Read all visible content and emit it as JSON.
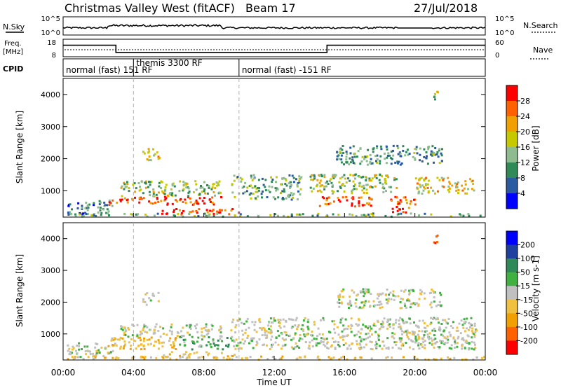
{
  "header": {
    "station": "Christmas Valley West (fitACF)",
    "beam": "Beam 17",
    "date": "27/Jul/2018"
  },
  "top_panels": {
    "nsky_label": "N.Sky",
    "nsky_ticks": [
      "10^5",
      "10^0"
    ],
    "nsearch_label": "N.Search",
    "nsearch_ticks": [
      "10^5",
      "10^0"
    ],
    "freq_label": "Freq.",
    "freq_unit": "[MHz]",
    "freq_ticks": [
      "18",
      "8"
    ],
    "nave_label": "Nave",
    "nave_ticks": [
      "60",
      "0"
    ],
    "cpid_label": "CPID",
    "cpid_segments": [
      {
        "label": "normal (fast) 151 RF",
        "start_h": 0,
        "end_h": 4
      },
      {
        "label": "themis 3300 RF",
        "start_h": 4,
        "end_h": 10
      },
      {
        "label": "normal (fast) -151 RF",
        "start_h": 10,
        "end_h": 24
      }
    ],
    "freq_steps": [
      {
        "start_h": 0,
        "end_h": 3,
        "value": 15
      },
      {
        "start_h": 3,
        "end_h": 15,
        "value": 10.3
      },
      {
        "start_h": 15,
        "end_h": 24,
        "value": 15
      }
    ]
  },
  "power_panel": {
    "ylabel": "Slant Range [km]",
    "yticks": [
      "1000",
      "2000",
      "3000",
      "4000"
    ],
    "colorbar_label": "Power [dB]",
    "colorbar_ticks": [
      "28",
      "24",
      "20",
      "16",
      "12",
      "8",
      "4"
    ]
  },
  "velocity_panel": {
    "ylabel": "Slant Range [km]",
    "yticks": [
      "1000",
      "2000",
      "3000",
      "4000"
    ],
    "colorbar_label": "Velocity [m s-1]",
    "colorbar_ticks": [
      "200",
      "100",
      "50",
      "15",
      "-15",
      "-50",
      "-100",
      "-200"
    ]
  },
  "x_axis": {
    "label": "Time UT",
    "ticks": [
      "00:00",
      "04:00",
      "08:00",
      "12:00",
      "16:00",
      "20:00",
      "00:00"
    ]
  },
  "colors": {
    "power_scale": [
      "#0000ff",
      "#2a5aa0",
      "#2e8b57",
      "#8fbc8f",
      "#c8c800",
      "#f0a000",
      "#ff6000",
      "#ff0000"
    ],
    "velocity_scale": [
      "#ff0000",
      "#ff6000",
      "#f0a000",
      "#f0c040",
      "#c0c0c0",
      "#40b040",
      "#2e8b57",
      "#2040a0",
      "#0000ff"
    ]
  },
  "chart_data": [
    {
      "type": "heatmap",
      "title": "Power",
      "xlabel": "Time UT",
      "ylabel": "Slant Range [km]",
      "xlim": [
        0,
        24
      ],
      "ylim": [
        180,
        4500
      ],
      "colorbar_label": "Power [dB]",
      "clim": [
        0,
        30
      ],
      "regions": [
        {
          "t0": 0.2,
          "t1": 2.8,
          "r0": 250,
          "r1": 700,
          "value": 8
        },
        {
          "t0": 2.5,
          "t1": 9.0,
          "r0": 550,
          "r1": 800,
          "value": 26
        },
        {
          "t0": 3.2,
          "t1": 9.0,
          "r0": 800,
          "r1": 1300,
          "value": 14
        },
        {
          "t0": 5.5,
          "t1": 10.0,
          "r0": 250,
          "r1": 420,
          "value": 27
        },
        {
          "t0": 4.5,
          "t1": 5.5,
          "r0": 1900,
          "r1": 2300,
          "value": 18
        },
        {
          "t0": 9.5,
          "t1": 13.5,
          "r0": 700,
          "r1": 1500,
          "value": 12
        },
        {
          "t0": 14.5,
          "t1": 17.5,
          "r0": 500,
          "r1": 800,
          "value": 25
        },
        {
          "t0": 14.0,
          "t1": 19.0,
          "r0": 900,
          "r1": 1500,
          "value": 14
        },
        {
          "t0": 15.5,
          "t1": 21.5,
          "r0": 1800,
          "r1": 2400,
          "value": 10
        },
        {
          "t0": 18.5,
          "t1": 20.0,
          "r0": 300,
          "r1": 800,
          "value": 26
        },
        {
          "t0": 20.0,
          "t1": 23.5,
          "r0": 900,
          "r1": 1400,
          "value": 18
        },
        {
          "t0": 21.0,
          "t1": 21.3,
          "r0": 3800,
          "r1": 4100,
          "value": 14
        },
        {
          "t0": 0.0,
          "t1": 24.0,
          "r0": 180,
          "r1": 280,
          "value": 12
        }
      ]
    },
    {
      "type": "heatmap",
      "title": "Velocity",
      "xlabel": "Time UT",
      "ylabel": "Slant Range [km]",
      "xlim": [
        0,
        24
      ],
      "ylim": [
        180,
        4500
      ],
      "colorbar_label": "Velocity [m s-1]",
      "clim": [
        -250,
        250
      ],
      "regions": [
        {
          "t0": 0.2,
          "t1": 2.8,
          "r0": 250,
          "r1": 700,
          "value": 0
        },
        {
          "t0": 2.5,
          "t1": 6.5,
          "r0": 500,
          "r1": 900,
          "value": -40
        },
        {
          "t0": 6.5,
          "t1": 9.5,
          "r0": 500,
          "r1": 900,
          "value": 40
        },
        {
          "t0": 3.2,
          "t1": 9.0,
          "r0": 900,
          "r1": 1300,
          "value": 0
        },
        {
          "t0": 5.5,
          "t1": 10.0,
          "r0": 250,
          "r1": 420,
          "value": -30
        },
        {
          "t0": 4.5,
          "t1": 5.5,
          "r0": 1900,
          "r1": 2300,
          "value": 0
        },
        {
          "t0": 9.5,
          "t1": 23.5,
          "r0": 500,
          "r1": 1500,
          "value": 0
        },
        {
          "t0": 15.5,
          "t1": 21.5,
          "r0": 1800,
          "r1": 2400,
          "value": 0
        },
        {
          "t0": 21.0,
          "t1": 21.3,
          "r0": 3800,
          "r1": 4100,
          "value": -200
        },
        {
          "t0": 0.0,
          "t1": 24.0,
          "r0": 180,
          "r1": 280,
          "value": -30
        }
      ]
    }
  ]
}
